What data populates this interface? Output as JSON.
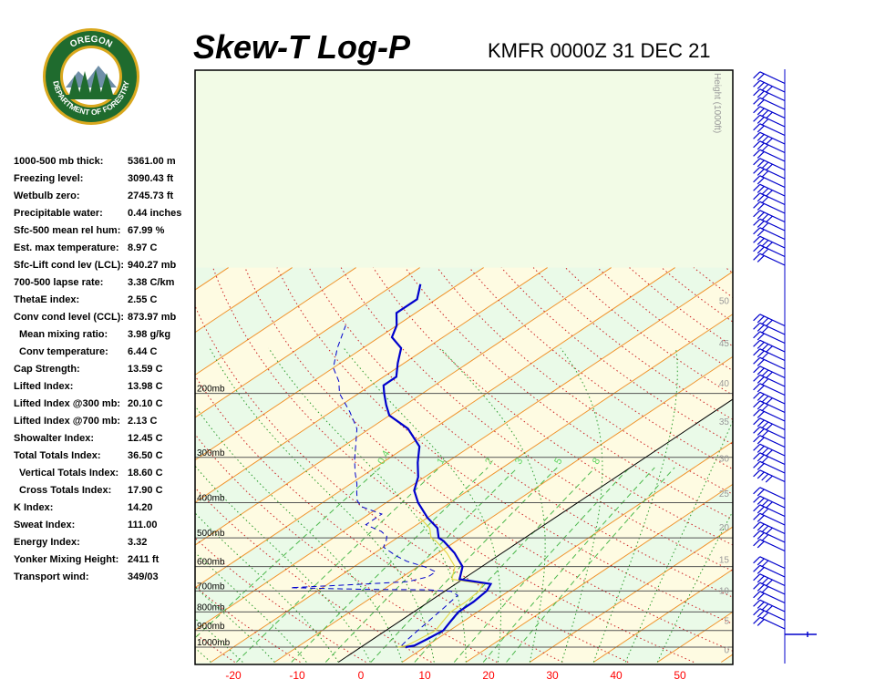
{
  "header": {
    "title": "Skew-T Log-P",
    "station_time": "KMFR 0000Z 31 DEC 21"
  },
  "logo": {
    "top_text": "OREGON",
    "bottom_text": "DEPARTMENT OF FORESTRY",
    "ring_color": "#1f6b2e",
    "gold_color": "#d9a81e"
  },
  "indices": [
    {
      "label": "1000-500 mb thick:",
      "value": "5361.00 m"
    },
    {
      "label": "Freezing level:",
      "value": "3090.43 ft"
    },
    {
      "label": "Wetbulb zero:",
      "value": "2745.73 ft"
    },
    {
      "label": "Precipitable water:",
      "value": "0.44 inches"
    },
    {
      "label": "Sfc-500 mean rel hum:",
      "value": "67.99 %"
    },
    {
      "label": "Est. max temperature:",
      "value": "8.97 C"
    },
    {
      "label": "Sfc-Lift cond lev (LCL):",
      "value": "940.27 mb"
    },
    {
      "label": "700-500 lapse rate:",
      "value": "3.38 C/km"
    },
    {
      "label": "ThetaE index:",
      "value": "2.55 C"
    },
    {
      "label": "Conv cond level (CCL):",
      "value": "873.97 mb"
    },
    {
      "label": "Mean mixing ratio:",
      "value": "3.98 g/kg",
      "indent": true
    },
    {
      "label": "Conv temperature:",
      "value": "6.44 C",
      "indent": true
    },
    {
      "label": "Cap Strength:",
      "value": "13.59 C"
    },
    {
      "label": "Lifted Index:",
      "value": "13.98 C"
    },
    {
      "label": "Lifted Index @300 mb:",
      "value": "20.10 C"
    },
    {
      "label": "Lifted Index @700 mb:",
      "value": "2.13 C"
    },
    {
      "label": "Showalter Index:",
      "value": "12.45 C"
    },
    {
      "label": "Total Totals Index:",
      "value": "36.50 C"
    },
    {
      "label": "Vertical Totals Index:",
      "value": "18.60 C",
      "indent": true
    },
    {
      "label": "Cross Totals Index:",
      "value": "17.90 C",
      "indent": true
    },
    {
      "label": "K Index:",
      "value": "14.20"
    },
    {
      "label": "Sweat Index:",
      "value": "111.00"
    },
    {
      "label": "Energy Index:",
      "value": "3.32"
    },
    {
      "label": "Yonker Mixing Height:",
      "value": "2411 ft"
    },
    {
      "label": "Transport wind:",
      "value": "349/03"
    }
  ],
  "chart_data": {
    "type": "line",
    "title": "Skew-T Log-P",
    "subtitle": "KMFR 0000Z 31 DEC 21",
    "x_ticks": [
      "-20",
      "-10",
      "0",
      "10",
      "20",
      "30",
      "40",
      "50"
    ],
    "pressure_labels": [
      "200mb",
      "300mb",
      "400mb",
      "500mb",
      "600mb",
      "700mb",
      "800mb",
      "900mb",
      "1000mb"
    ],
    "height_axis_label": "Height (1000ft)",
    "height_ticks": [
      "0",
      "5",
      "10",
      "15",
      "20",
      "25",
      "30",
      "35",
      "40",
      "45",
      "50"
    ],
    "mixing_ratio_labels": [
      "0.4",
      "1",
      "2",
      "3",
      "5",
      "8"
    ],
    "series": [
      {
        "role": "temperature",
        "color": "#0000cc",
        "points": [
          [
            7,
            1000
          ],
          [
            8,
            990
          ],
          [
            8.5,
            950
          ],
          [
            9,
            900
          ],
          [
            8,
            850
          ],
          [
            7,
            800
          ],
          [
            7,
            750
          ],
          [
            6.5,
            700
          ],
          [
            5.5,
            670
          ],
          [
            -0.5,
            650
          ],
          [
            -3,
            600
          ],
          [
            -7.5,
            550
          ],
          [
            -12,
            510
          ],
          [
            -13.5,
            500
          ],
          [
            -16,
            470
          ],
          [
            -20,
            440
          ],
          [
            -25,
            400
          ],
          [
            -28.5,
            370
          ],
          [
            -31,
            340
          ],
          [
            -34.5,
            310
          ],
          [
            -38,
            280
          ],
          [
            -44,
            250
          ],
          [
            -50,
            230
          ],
          [
            -53,
            215
          ],
          [
            -56,
            200
          ],
          [
            -58,
            190
          ],
          [
            -58,
            180
          ],
          [
            -61,
            165
          ],
          [
            -64,
            150
          ],
          [
            -68,
            140
          ],
          [
            -70,
            130
          ],
          [
            -73,
            120
          ],
          [
            -73,
            110
          ],
          [
            -76,
            100
          ]
        ]
      },
      {
        "role": "dewpoint",
        "color": "#0000cc",
        "points": [
          [
            6,
            990
          ],
          [
            5.5,
            950
          ],
          [
            5,
            900
          ],
          [
            4,
            800
          ],
          [
            3,
            720
          ],
          [
            1,
            702
          ],
          [
            -3,
            695
          ],
          [
            -13,
            693
          ],
          [
            -25,
            686
          ],
          [
            -21,
            680
          ],
          [
            -14,
            670
          ],
          [
            -8,
            660
          ],
          [
            -6,
            640
          ],
          [
            -6,
            620
          ],
          [
            -9,
            600
          ],
          [
            -13,
            580
          ],
          [
            -16,
            560
          ],
          [
            -20,
            530
          ],
          [
            -21,
            510
          ],
          [
            -22,
            495
          ],
          [
            -24,
            480
          ],
          [
            -28,
            460
          ],
          [
            -28,
            430
          ],
          [
            -33,
            410
          ],
          [
            -35,
            395
          ],
          [
            -37,
            375
          ],
          [
            -39,
            355
          ],
          [
            -42,
            330
          ],
          [
            -45,
            305
          ],
          [
            -48,
            280
          ],
          [
            -52,
            250
          ],
          [
            -57,
            225
          ],
          [
            -63,
            200
          ],
          [
            -66,
            185
          ],
          [
            -70,
            170
          ],
          [
            -74,
            150
          ],
          [
            -78,
            130
          ]
        ]
      }
    ],
    "wind_barbs": {
      "color": "#0000cc",
      "count": 64
    }
  }
}
